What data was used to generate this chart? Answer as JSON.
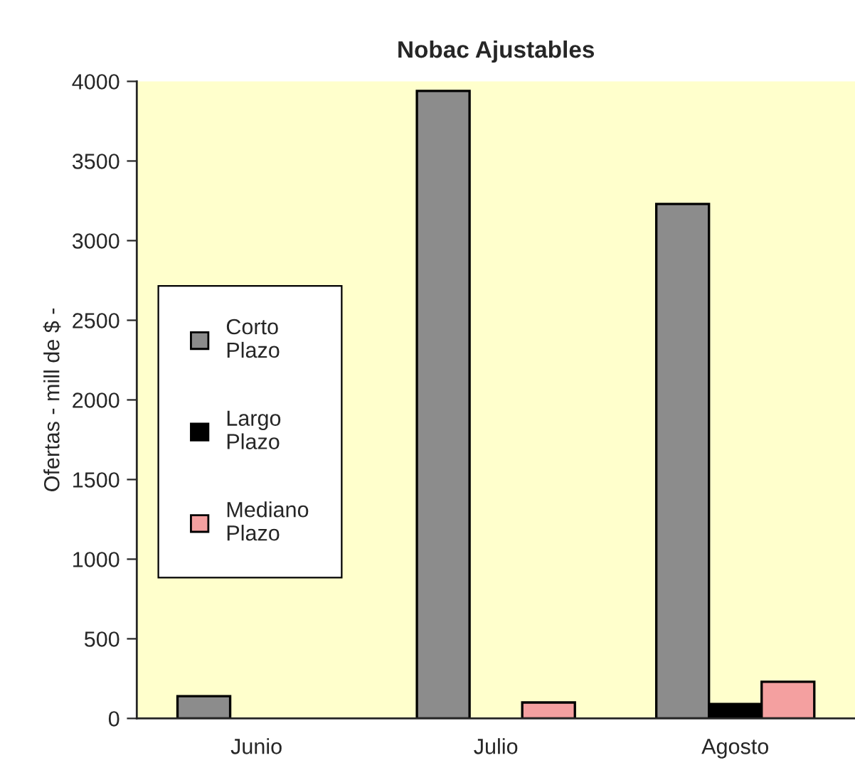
{
  "chart_data": {
    "type": "bar",
    "title": "Nobac Ajustables",
    "ylabel": "Ofertas - mill de $ -",
    "categories": [
      "Junio",
      "Julio",
      "Agosto"
    ],
    "series": [
      {
        "name": "Corto\nPlazo",
        "color": "#8c8c8c",
        "values": [
          140,
          3940,
          3230
        ]
      },
      {
        "name": "Largo\nPlazo",
        "color": "#000000",
        "values": [
          null,
          null,
          90
        ]
      },
      {
        "name": "Mediano\nPlazo",
        "color": "#f4a0a0",
        "values": [
          null,
          100,
          230
        ]
      }
    ],
    "ylim": [
      0,
      4000
    ],
    "yticks": [
      0,
      500,
      1000,
      1500,
      2000,
      2500,
      3000,
      3500,
      4000
    ],
    "grid": false,
    "legend": "left"
  }
}
